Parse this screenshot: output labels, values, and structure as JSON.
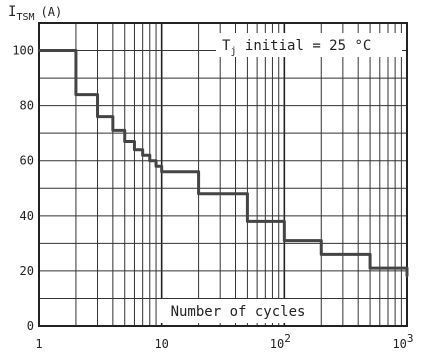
{
  "chart_data": {
    "type": "line",
    "title": "",
    "ylabel": "I_TSM (A)",
    "ylabel_main": "I",
    "ylabel_sub": "TSM",
    "ylabel_unit": "(A)",
    "xlabel": "Number of cycles",
    "annotation": "T_j initial = 25 °C",
    "annotation_main": "T",
    "annotation_sub": "j",
    "annotation_rest": " initial = 25 °C",
    "x_scale": "log",
    "xlim": [
      1,
      1000
    ],
    "ylim": [
      0,
      110
    ],
    "grid": true,
    "y_ticks": [
      "0",
      "20",
      "40",
      "60",
      "80",
      "100"
    ],
    "x_tick_labels": [
      {
        "value": 1,
        "base": "1",
        "exp": ""
      },
      {
        "value": 10,
        "base": "10",
        "exp": ""
      },
      {
        "value": 100,
        "base": "10",
        "exp": "2"
      },
      {
        "value": 1000,
        "base": "10",
        "exp": "3"
      }
    ],
    "series": [
      {
        "name": "",
        "x": [
          1,
          2,
          3,
          4,
          5,
          6,
          7,
          8,
          9,
          10,
          20,
          50,
          100,
          200,
          500,
          1000
        ],
        "y": [
          100,
          84,
          76,
          71,
          67,
          64,
          62,
          60,
          58,
          56,
          48,
          38,
          31,
          26,
          21,
          18
        ]
      }
    ],
    "line_color": "#444444"
  }
}
